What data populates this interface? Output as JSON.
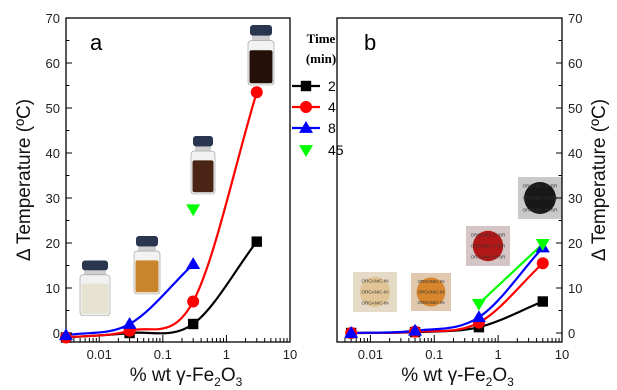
{
  "chart_data": [
    {
      "type": "scatter",
      "panel_label": "a",
      "xscale": "log",
      "xlim": [
        0.003,
        10
      ],
      "ylim": [
        -2,
        70
      ],
      "xticks": [
        "0.01",
        "0.1",
        "1",
        "10"
      ],
      "yticks": [
        "0",
        "10",
        "20",
        "30",
        "40",
        "50",
        "60",
        "70"
      ],
      "ytick_side": "left",
      "xlabel_parts": [
        "% wt γ-Fe",
        "2",
        "O",
        "3"
      ],
      "ylabel": "Δ Temperature (ºC)",
      "legend": {
        "title_line1": "Time",
        "title_line2": "(min)",
        "entries": [
          "2",
          "4",
          "8",
          "45"
        ]
      },
      "series": [
        {
          "name": "2",
          "color": "#000000",
          "marker": "square",
          "x": [
            0.003,
            0.03,
            0.3,
            3
          ],
          "y": [
            -1,
            0,
            2,
            20.3
          ]
        },
        {
          "name": "4",
          "color": "#ff0000",
          "marker": "circle",
          "x": [
            0.003,
            0.03,
            0.3,
            3
          ],
          "y": [
            -1,
            0.5,
            7,
            53.5
          ]
        },
        {
          "name": "8",
          "color": "#0000ff",
          "marker": "triangle-up",
          "x": [
            0.003,
            0.03,
            0.3
          ],
          "y": [
            -0.5,
            2,
            15.3
          ]
        },
        {
          "name": "45",
          "color": "#00ff00",
          "marker": "triangle-down",
          "x": [
            0.3
          ],
          "y": [
            27.5
          ]
        }
      ],
      "photo_overlays": [
        {
          "label": "",
          "liquid": "#e6e2d2"
        },
        {
          "label": "",
          "liquid": "#c8852c"
        },
        {
          "label": "",
          "liquid": "#4a2414"
        },
        {
          "label": "",
          "liquid": "#241008"
        }
      ]
    },
    {
      "type": "scatter",
      "panel_label": "b",
      "xscale": "log",
      "xlim": [
        0.003,
        10
      ],
      "ylim": [
        -2,
        70
      ],
      "xticks": [
        "0.01",
        "0.1",
        "1",
        "10"
      ],
      "yticks": [
        "0",
        "10",
        "20",
        "30",
        "40",
        "50",
        "60",
        "70"
      ],
      "ytick_side": "right",
      "xlabel_parts": [
        "% wt γ-Fe",
        "2",
        "O",
        "3"
      ],
      "ylabel": "Δ Temperature (ºC)",
      "series": [
        {
          "name": "2",
          "color": "#000000",
          "marker": "square",
          "x": [
            0.005,
            0.05,
            0.5,
            5
          ],
          "y": [
            0,
            0.2,
            1.3,
            7
          ]
        },
        {
          "name": "4",
          "color": "#ff0000",
          "marker": "circle",
          "x": [
            0.005,
            0.05,
            0.5,
            5
          ],
          "y": [
            0,
            0.3,
            2.3,
            15.5
          ]
        },
        {
          "name": "8",
          "color": "#0000ff",
          "marker": "triangle-up",
          "x": [
            0.005,
            0.05,
            0.5,
            5
          ],
          "y": [
            0,
            0.5,
            3.5,
            19
          ]
        },
        {
          "name": "45",
          "color": "#00ff00",
          "marker": "triangle-down",
          "x": [
            0.5,
            5
          ],
          "y": [
            6.5,
            19.8
          ]
        }
      ],
      "photo_overlays": [
        {
          "label": "ORGANIC-IN",
          "bg": "#e4dac6",
          "disc": "#e1c596"
        },
        {
          "label": "ORGANIC-IN",
          "bg": "#e0c9ae",
          "disc": "#d8862e"
        },
        {
          "label": "ORGANIC HYBR",
          "bg": "#d4c6c6",
          "disc": "#b31818"
        },
        {
          "label": "ORGANIC HYBR",
          "bg": "#c9c9c9",
          "disc": "#181818"
        }
      ]
    }
  ]
}
